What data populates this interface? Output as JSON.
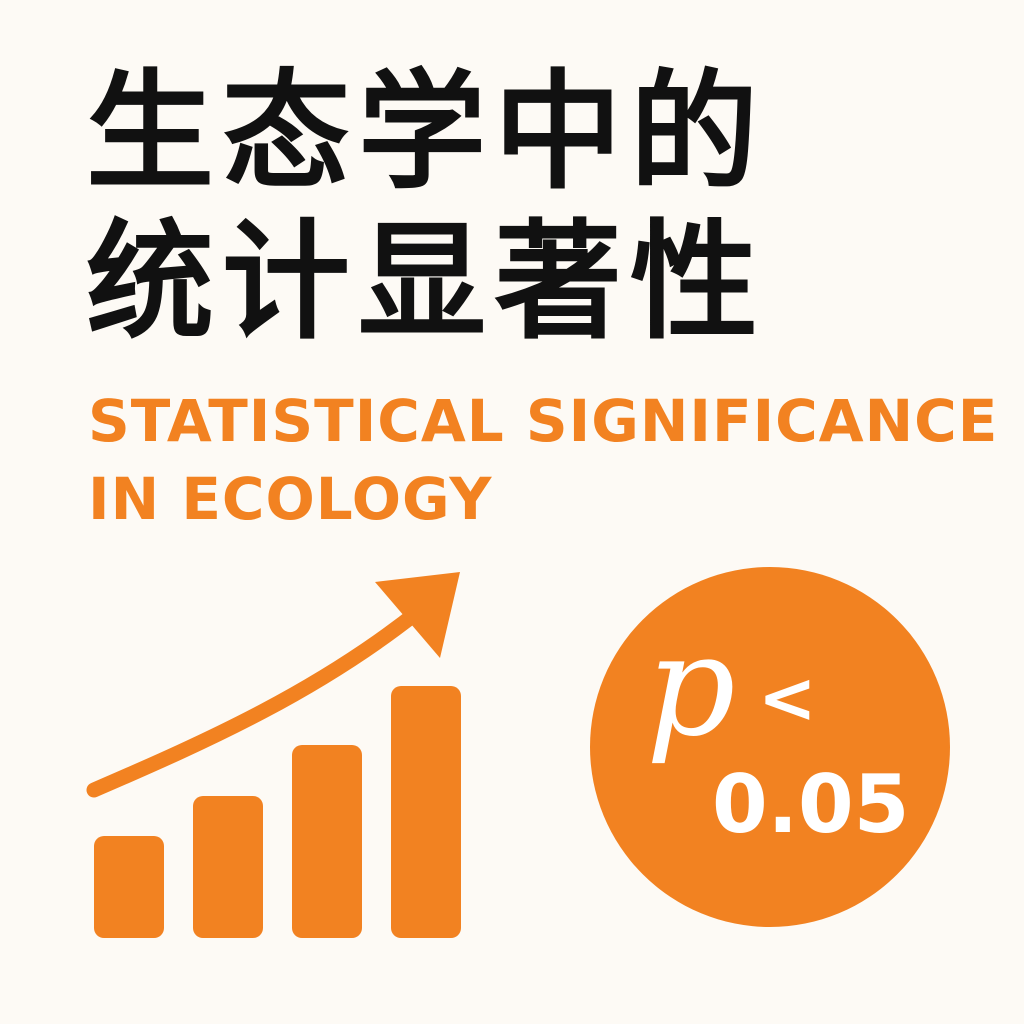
{
  "colors": {
    "background": "#fdfaf5",
    "text_dark": "#111111",
    "accent": "#f28221"
  },
  "title_zh": {
    "line1": "生态学中的",
    "line2": "统计显著性"
  },
  "title_en": {
    "line1": "STATISTICAL SIGNIFICANCE",
    "line2": "IN ECOLOGY"
  },
  "icons": {
    "chart": "rising-bar-chart-with-arrow-icon"
  },
  "badge": {
    "symbol": "p",
    "comparator": "<",
    "value": "0.05"
  }
}
